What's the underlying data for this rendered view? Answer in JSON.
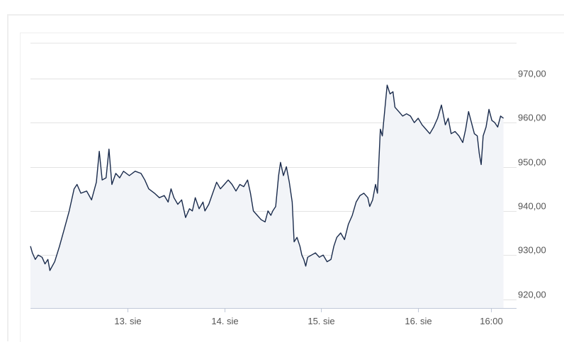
{
  "chart_data": {
    "type": "area",
    "title": "",
    "xlabel": "",
    "ylabel": "",
    "ylim": [
      918,
      978
    ],
    "y_ticks": [
      "970,00",
      "960,00",
      "950,00",
      "940,00",
      "930,00",
      "920,00"
    ],
    "y_tick_values": [
      970,
      960,
      950,
      940,
      930,
      920
    ],
    "x_ticks": [
      "13. sie",
      "14. sie",
      "15. sie",
      "16. sie",
      "16:00"
    ],
    "x_tick_positions": [
      1,
      2,
      3,
      4,
      4.75
    ],
    "x_range": [
      0.0,
      5.0
    ],
    "grid": true,
    "series": [
      {
        "points": [
          [
            0.0,
            932.0
          ],
          [
            0.02,
            930.5
          ],
          [
            0.05,
            929.0
          ],
          [
            0.08,
            930.0
          ],
          [
            0.12,
            929.5
          ],
          [
            0.15,
            928.0
          ],
          [
            0.18,
            929.0
          ],
          [
            0.2,
            926.5
          ],
          [
            0.25,
            928.5
          ],
          [
            0.3,
            932.0
          ],
          [
            0.35,
            936.0
          ],
          [
            0.4,
            940.0
          ],
          [
            0.45,
            945.0
          ],
          [
            0.48,
            946.0
          ],
          [
            0.52,
            944.0
          ],
          [
            0.58,
            944.5
          ],
          [
            0.63,
            942.5
          ],
          [
            0.68,
            946.5
          ],
          [
            0.71,
            953.5
          ],
          [
            0.74,
            947.0
          ],
          [
            0.78,
            947.5
          ],
          [
            0.81,
            954.0
          ],
          [
            0.84,
            946.0
          ],
          [
            0.88,
            948.5
          ],
          [
            0.92,
            947.5
          ],
          [
            0.96,
            949.0
          ],
          [
            1.02,
            948.0
          ],
          [
            1.08,
            949.0
          ],
          [
            1.14,
            948.5
          ],
          [
            1.18,
            947.0
          ],
          [
            1.22,
            945.0
          ],
          [
            1.28,
            944.0
          ],
          [
            1.33,
            943.0
          ],
          [
            1.38,
            943.5
          ],
          [
            1.42,
            942.0
          ],
          [
            1.45,
            945.0
          ],
          [
            1.48,
            943.0
          ],
          [
            1.52,
            941.5
          ],
          [
            1.56,
            942.5
          ],
          [
            1.6,
            938.5
          ],
          [
            1.64,
            940.5
          ],
          [
            1.67,
            940.0
          ],
          [
            1.7,
            943.0
          ],
          [
            1.74,
            940.5
          ],
          [
            1.78,
            942.0
          ],
          [
            1.8,
            940.0
          ],
          [
            1.84,
            941.5
          ],
          [
            1.88,
            944.0
          ],
          [
            1.92,
            946.5
          ],
          [
            1.96,
            945.0
          ],
          [
            2.0,
            946.0
          ],
          [
            2.04,
            947.0
          ],
          [
            2.08,
            946.0
          ],
          [
            2.12,
            944.5
          ],
          [
            2.16,
            946.0
          ],
          [
            2.2,
            945.5
          ],
          [
            2.24,
            947.0
          ],
          [
            2.27,
            944.0
          ],
          [
            2.3,
            940.0
          ],
          [
            2.34,
            939.0
          ],
          [
            2.38,
            938.0
          ],
          [
            2.42,
            937.5
          ],
          [
            2.45,
            940.0
          ],
          [
            2.48,
            939.0
          ],
          [
            2.5,
            940.0
          ],
          [
            2.53,
            941.0
          ],
          [
            2.56,
            948.0
          ],
          [
            2.58,
            951.0
          ],
          [
            2.61,
            948.0
          ],
          [
            2.64,
            950.0
          ],
          [
            2.67,
            946.5
          ],
          [
            2.7,
            942.0
          ],
          [
            2.72,
            933.0
          ],
          [
            2.75,
            934.0
          ],
          [
            2.78,
            932.0
          ],
          [
            2.8,
            930.0
          ],
          [
            2.82,
            929.0
          ],
          [
            2.84,
            927.5
          ],
          [
            2.86,
            929.5
          ],
          [
            2.9,
            930.0
          ],
          [
            2.94,
            930.5
          ],
          [
            2.98,
            929.5
          ],
          [
            3.02,
            930.0
          ],
          [
            3.06,
            928.5
          ],
          [
            3.1,
            929.0
          ],
          [
            3.13,
            932.0
          ],
          [
            3.16,
            934.0
          ],
          [
            3.2,
            935.0
          ],
          [
            3.24,
            933.5
          ],
          [
            3.28,
            937.0
          ],
          [
            3.32,
            939.0
          ],
          [
            3.36,
            942.0
          ],
          [
            3.4,
            943.5
          ],
          [
            3.44,
            944.0
          ],
          [
            3.48,
            943.0
          ],
          [
            3.5,
            941.0
          ],
          [
            3.53,
            942.5
          ],
          [
            3.56,
            946.0
          ],
          [
            3.58,
            944.0
          ],
          [
            3.61,
            958.5
          ],
          [
            3.63,
            957.0
          ],
          [
            3.66,
            964.0
          ],
          [
            3.68,
            968.5
          ],
          [
            3.71,
            966.5
          ],
          [
            3.74,
            967.0
          ],
          [
            3.76,
            963.5
          ],
          [
            3.8,
            962.5
          ],
          [
            3.84,
            961.5
          ],
          [
            3.88,
            962.0
          ],
          [
            3.92,
            961.5
          ],
          [
            3.96,
            960.0
          ],
          [
            4.0,
            961.0
          ],
          [
            4.04,
            959.5
          ],
          [
            4.08,
            958.5
          ],
          [
            4.12,
            957.5
          ],
          [
            4.16,
            959.0
          ],
          [
            4.2,
            961.0
          ],
          [
            4.24,
            964.0
          ],
          [
            4.28,
            959.5
          ],
          [
            4.31,
            961.0
          ],
          [
            4.34,
            957.5
          ],
          [
            4.38,
            958.0
          ],
          [
            4.42,
            957.0
          ],
          [
            4.46,
            955.5
          ],
          [
            4.49,
            958.5
          ],
          [
            4.52,
            962.5
          ],
          [
            4.55,
            960.0
          ],
          [
            4.58,
            957.5
          ],
          [
            4.61,
            957.0
          ],
          [
            4.63,
            953.0
          ],
          [
            4.65,
            950.5
          ],
          [
            4.67,
            957.0
          ],
          [
            4.7,
            959.0
          ],
          [
            4.73,
            963.0
          ],
          [
            4.76,
            960.5
          ],
          [
            4.79,
            960.0
          ],
          [
            4.82,
            959.0
          ],
          [
            4.85,
            961.5
          ],
          [
            4.88,
            961.0
          ]
        ]
      }
    ]
  }
}
